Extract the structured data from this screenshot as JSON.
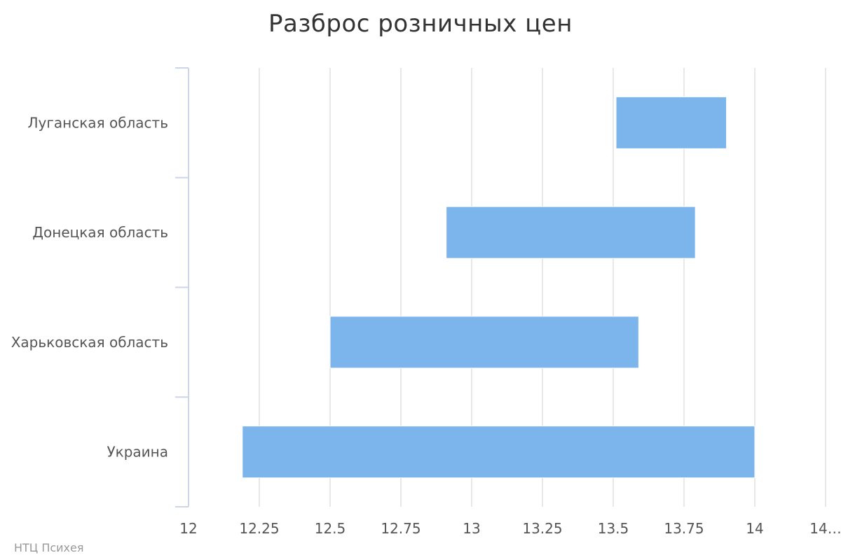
{
  "chart_data": {
    "type": "bar",
    "orientation": "horizontal",
    "range_bars": true,
    "title": "Разброс розничных цен",
    "categories": [
      "Луганская область",
      "Донецкая область",
      "Харьковская область",
      "Украина"
    ],
    "series": [
      {
        "values": [
          [
            13.51,
            13.9
          ],
          [
            12.91,
            13.79
          ],
          [
            12.5,
            13.59
          ],
          [
            12.19,
            14.0
          ]
        ],
        "color": "#7cb5ec"
      }
    ],
    "xticks": [
      "12",
      "12.25",
      "12.5",
      "12.75",
      "13",
      "13.25",
      "13.5",
      "13.75",
      "14",
      "14…"
    ],
    "xlim": [
      12,
      14.25
    ],
    "xlabel": "",
    "ylabel": "",
    "grid": true,
    "legend": "none"
  },
  "credit": "НТЦ Психея"
}
